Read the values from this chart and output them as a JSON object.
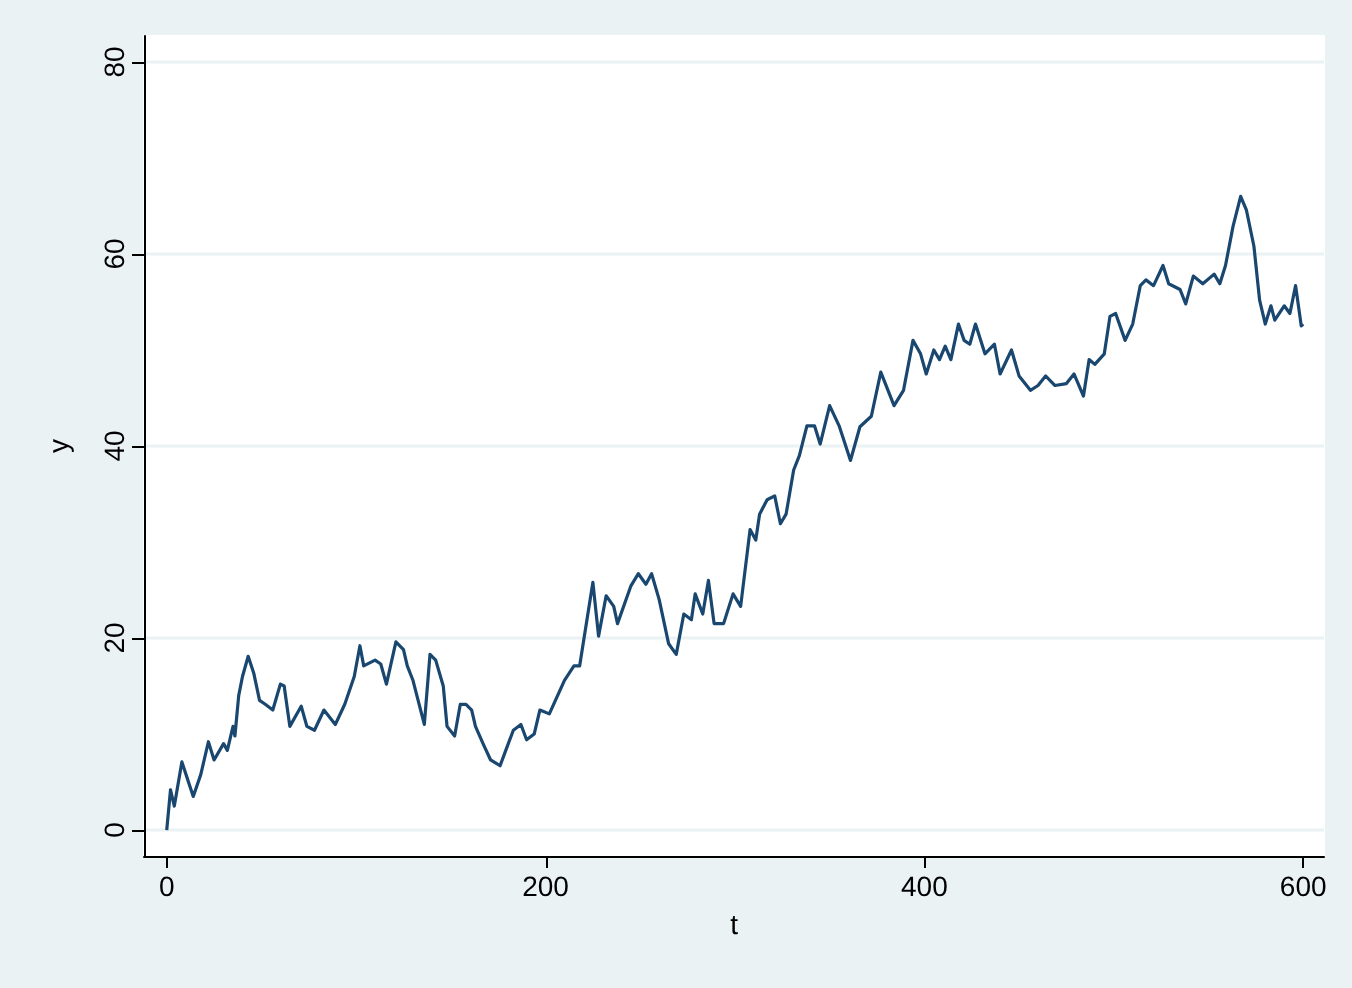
{
  "chart_data": {
    "type": "line",
    "xlabel": "t",
    "ylabel": "y",
    "xlim": [
      -12,
      611
    ],
    "ylim": [
      -2.7,
      82.7
    ],
    "xticks": [
      0,
      200,
      400,
      600
    ],
    "yticks": [
      0,
      20,
      40,
      60,
      80
    ],
    "grid": "y",
    "marker": "none",
    "line_style": "solid",
    "x": [
      0,
      2,
      4,
      8,
      14,
      18,
      22,
      25,
      30,
      32,
      35,
      36,
      38,
      40,
      43,
      46,
      49,
      52,
      56,
      60,
      62,
      65,
      71,
      74,
      78,
      83,
      89,
      94,
      99,
      102,
      104,
      110,
      113,
      116,
      121,
      125,
      127,
      130,
      136,
      139,
      142,
      146,
      148,
      152,
      155,
      158,
      161,
      163,
      167,
      171,
      176,
      179,
      183,
      187,
      190,
      194,
      197,
      202,
      210,
      215,
      218,
      225,
      228,
      232,
      236,
      238,
      245,
      249,
      253,
      256,
      260,
      265,
      269,
      273,
      277,
      279,
      283,
      286,
      289,
      294,
      299,
      303,
      308,
      311,
      313,
      317,
      321,
      324,
      327,
      331,
      334,
      338,
      342,
      345,
      350,
      355,
      361,
      366,
      372,
      377,
      384,
      389,
      394,
      398,
      401,
      405,
      408,
      411,
      414,
      418,
      421,
      424,
      427,
      432,
      437,
      440,
      446,
      450,
      456,
      460,
      464,
      469,
      475,
      479,
      484,
      487,
      490,
      495,
      498,
      501,
      506,
      510,
      514,
      517,
      521,
      526,
      529,
      535,
      538,
      542,
      547,
      553,
      556,
      559,
      563,
      567,
      570,
      574,
      577,
      580,
      583,
      585,
      590,
      593,
      596,
      599,
      600
    ],
    "series": [
      {
        "color": "#1a476f",
        "values": [
          0,
          4.2,
          2.5,
          7.1,
          3.5,
          5.8,
          9.2,
          7.3,
          9,
          8.3,
          10.8,
          9.8,
          14,
          16,
          18.1,
          16.3,
          13.5,
          13.1,
          12.5,
          15.2,
          15,
          10.8,
          12.9,
          10.8,
          10.4,
          12.5,
          11,
          13.1,
          16,
          19.2,
          17.1,
          17.7,
          17.3,
          15.2,
          19.6,
          18.8,
          17.1,
          15.6,
          11,
          18.3,
          17.7,
          15,
          10.8,
          9.8,
          13.1,
          13.1,
          12.5,
          10.8,
          9,
          7.3,
          6.7,
          8.3,
          10.4,
          11,
          9.4,
          10,
          12.5,
          12.1,
          15.6,
          17.1,
          17.1,
          25.8,
          20.2,
          24.4,
          23.3,
          21.5,
          25.4,
          26.7,
          25.6,
          26.7,
          24,
          19.4,
          18.3,
          22.5,
          21.9,
          24.6,
          22.5,
          26,
          21.5,
          21.5,
          24.6,
          23.3,
          31.3,
          30.2,
          32.9,
          34.4,
          34.8,
          31.9,
          32.9,
          37.5,
          39,
          42.1,
          42.1,
          40.2,
          44.2,
          42.1,
          38.5,
          42,
          43.1,
          47.7,
          44.2,
          45.8,
          51,
          49.6,
          47.5,
          50,
          49,
          50.4,
          49,
          52.7,
          51,
          50.6,
          52.7,
          49.6,
          50.6,
          47.5,
          50,
          47.3,
          45.8,
          46.3,
          47.3,
          46.3,
          46.5,
          47.5,
          45.2,
          49,
          48.5,
          49.6,
          53.5,
          53.8,
          51,
          52.7,
          56.7,
          57.3,
          56.7,
          58.8,
          56.9,
          56.3,
          54.8,
          57.7,
          56.9,
          57.9,
          56.9,
          58.8,
          62.9,
          66,
          64.6,
          60.8,
          55.2,
          52.7,
          54.6,
          53.1,
          54.6,
          53.8,
          56.7,
          52.5,
          52.7
        ]
      }
    ]
  }
}
